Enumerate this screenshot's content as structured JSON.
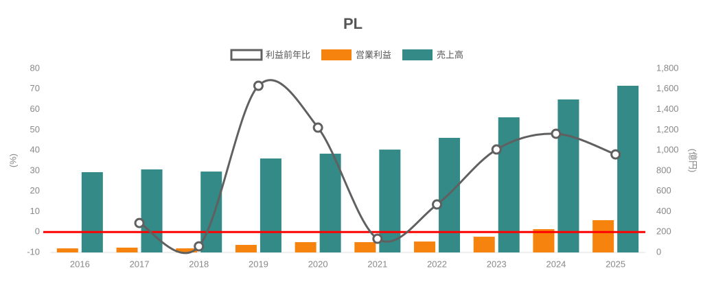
{
  "chart_data": {
    "type": "combo",
    "title": "PL",
    "categories": [
      "2016",
      "2017",
      "2018",
      "2019",
      "2020",
      "2021",
      "2022",
      "2023",
      "2024",
      "2025"
    ],
    "series": [
      {
        "name": "利益前年比",
        "type": "line",
        "axis": "y",
        "color": "#606060",
        "values": [
          null,
          4.4,
          -7,
          71.6,
          51.1,
          -3.3,
          13.5,
          40.4,
          48.1,
          38
        ]
      },
      {
        "name": "営業利益",
        "type": "bar",
        "axis": "y2",
        "color": "#f7830f",
        "values": [
          40,
          47,
          40,
          74,
          101,
          101,
          107,
          154,
          228,
          316
        ]
      },
      {
        "name": "売上高",
        "type": "bar",
        "axis": "y2",
        "color": "#348a87",
        "values": [
          786,
          813,
          792,
          920,
          967,
          1007,
          1122,
          1323,
          1498,
          1632
        ]
      }
    ],
    "ylabel": "(%)",
    "y2label": "(億円)",
    "ylim": [
      -10,
      80
    ],
    "yticks": [
      -10,
      0,
      10,
      20,
      30,
      40,
      50,
      60,
      70,
      80
    ],
    "y2lim": [
      0,
      1800
    ],
    "y2ticks": [
      0,
      200,
      400,
      600,
      800,
      {
        "value": 1000,
        "label": "1,000"
      },
      {
        "value": 1200,
        "label": "1,200"
      },
      {
        "value": 1400,
        "label": "1,400"
      },
      {
        "value": 1600,
        "label": "1,600"
      },
      {
        "value": 1800,
        "label": "1,800"
      }
    ],
    "reference_line": {
      "value": 0,
      "color": "#ff0000"
    },
    "grid": false,
    "legend": "top"
  }
}
